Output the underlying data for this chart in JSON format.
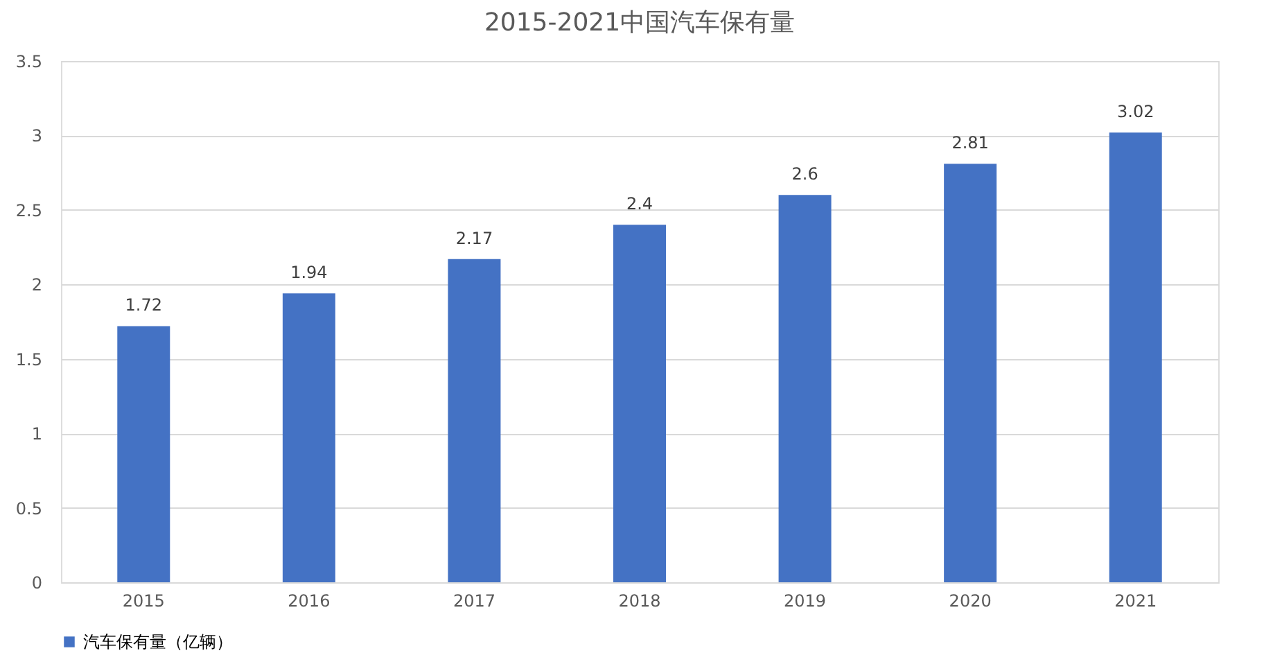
{
  "chart_data": {
    "type": "bar",
    "title": "2015-2021中国汽车保有量",
    "categories": [
      "2015",
      "2016",
      "2017",
      "2018",
      "2019",
      "2020",
      "2021"
    ],
    "series": [
      {
        "name": "汽车保有量（亿辆）",
        "color": "#4472c4",
        "values": [
          1.72,
          1.94,
          2.17,
          2.4,
          2.6,
          2.81,
          3.02
        ]
      }
    ],
    "ylim": [
      0,
      3.5
    ],
    "yticks": [
      0,
      0.5,
      1,
      1.5,
      2,
      2.5,
      3,
      3.5
    ],
    "grid": "y",
    "legend": "bottom",
    "data_labels": true
  }
}
